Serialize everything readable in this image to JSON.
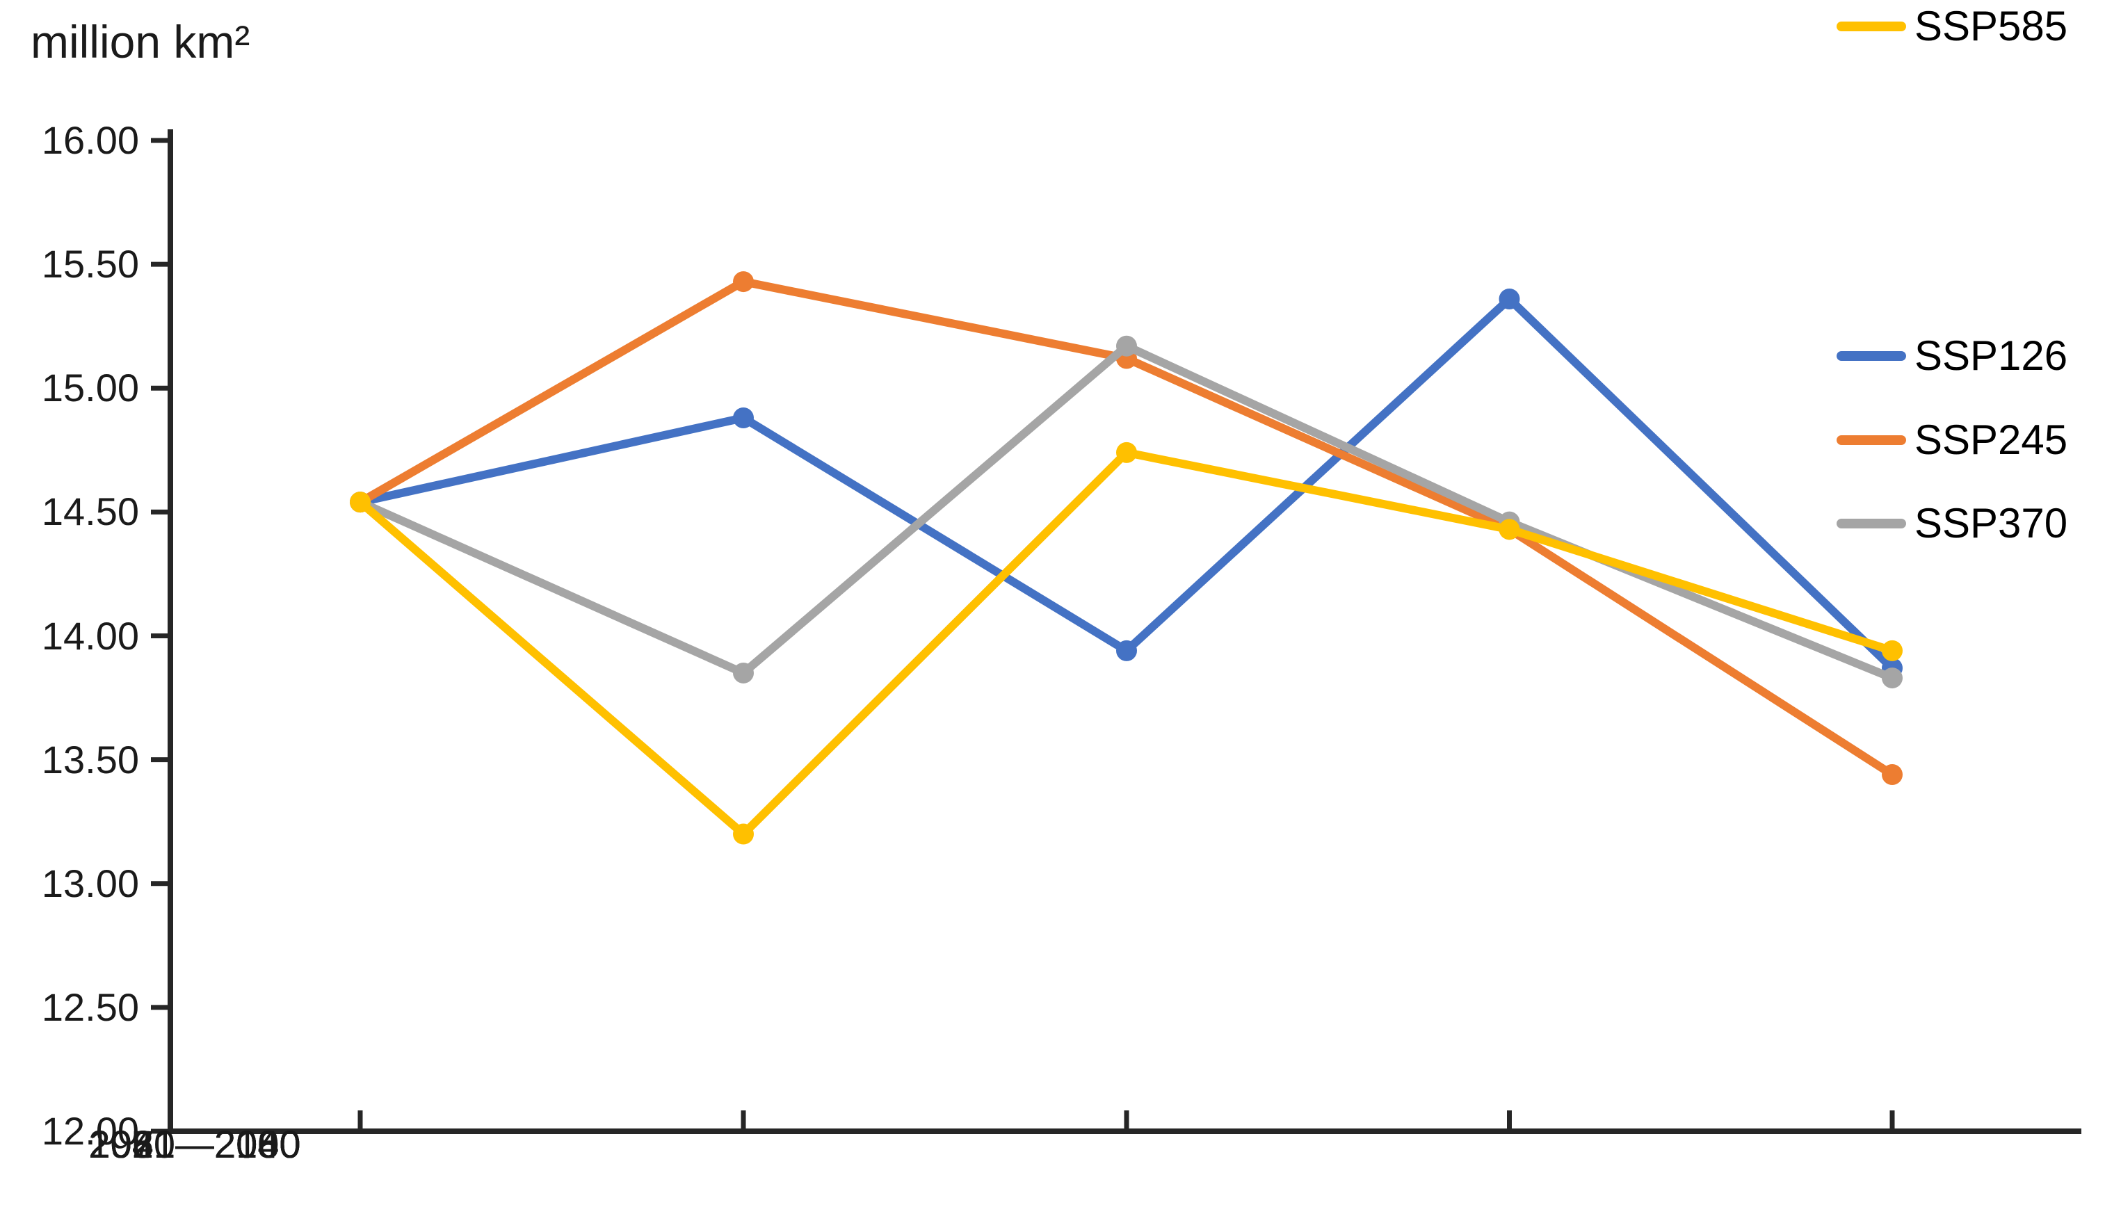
{
  "chart_data": {
    "type": "line",
    "title": "million km²",
    "ylabel": "million km²",
    "xlabel": "",
    "grid": false,
    "legend_position": "right",
    "categories": [
      "1970—2000",
      "2021—2040",
      "2041—2060",
      "2061—2080",
      "2081—2100"
    ],
    "series": [
      {
        "name": "SSP126",
        "color": "#4472C4",
        "values": [
          14.54,
          14.88,
          13.94,
          15.36,
          13.87
        ]
      },
      {
        "name": "SSP245",
        "color": "#ED7D31",
        "values": [
          14.54,
          15.43,
          15.12,
          14.43,
          13.44
        ]
      },
      {
        "name": "SSP370",
        "color": "#A5A5A5",
        "values": [
          14.54,
          13.85,
          15.17,
          14.46,
          13.83
        ]
      },
      {
        "name": "SSP585",
        "color": "#FFC000",
        "values": [
          14.54,
          13.2,
          14.74,
          14.43,
          13.94
        ]
      }
    ],
    "y_axis": {
      "min": 12.0,
      "max": 16.0,
      "step": 0.5,
      "tick_labels": [
        "16.00",
        "15.50",
        "15.00",
        "14.50",
        "14.00",
        "13.50",
        "13.00",
        "12.50",
        "12.00"
      ]
    },
    "axis_color": "#262626",
    "text_color": "#1a1a1a",
    "line_width": 12,
    "marker_radius": 15,
    "marker_style": "circle"
  }
}
